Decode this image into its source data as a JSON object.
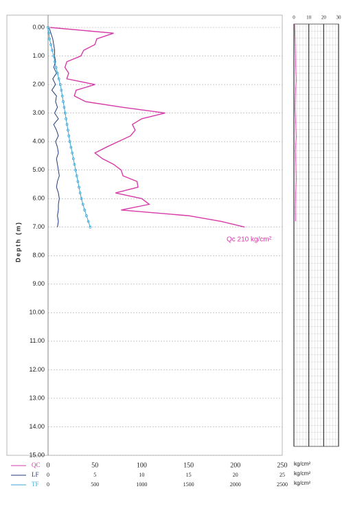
{
  "chart_data": [
    {
      "type": "line",
      "y_label": "Depth (m)",
      "ylim": [
        0,
        15
      ],
      "yticks": [
        {
          "value": 0,
          "label": "0.00"
        },
        {
          "value": 1,
          "label": "1.00"
        },
        {
          "value": 2,
          "label": "2.00"
        },
        {
          "value": 3,
          "label": "3.00"
        },
        {
          "value": 4,
          "label": "4.00"
        },
        {
          "value": 5,
          "label": "5.00"
        },
        {
          "value": 6,
          "label": "6.00"
        },
        {
          "value": 7,
          "label": "7.00"
        },
        {
          "value": 8,
          "label": "8.00"
        },
        {
          "value": 9,
          "label": "9.00"
        },
        {
          "value": 10,
          "label": "10.00"
        },
        {
          "value": 11,
          "label": "11.00"
        },
        {
          "value": 12,
          "label": "12.00"
        },
        {
          "value": 13,
          "label": "13.00"
        },
        {
          "value": 14,
          "label": "14.00"
        },
        {
          "value": 15,
          "label": "15.00"
        }
      ],
      "grid": true,
      "depth": [
        0,
        0.2,
        0.4,
        0.6,
        0.8,
        1.0,
        1.2,
        1.4,
        1.6,
        1.8,
        2.0,
        2.2,
        2.4,
        2.6,
        2.8,
        3.0,
        3.2,
        3.4,
        3.6,
        3.8,
        4.0,
        4.2,
        4.4,
        4.6,
        4.8,
        5.0,
        5.2,
        5.4,
        5.6,
        5.8,
        6.0,
        6.2,
        6.4,
        6.6,
        6.8,
        7.0
      ],
      "annotation": "Qc 210 kg/cm²",
      "series": [
        {
          "name": "QC",
          "color": "#d63aa8",
          "unit": "kg/cm²",
          "markers": false,
          "xlim": [
            0,
            250
          ],
          "xticks": [
            0,
            50,
            100,
            150,
            200,
            250
          ],
          "values": [
            2,
            70,
            52,
            50,
            38,
            35,
            20,
            18,
            22,
            20,
            50,
            30,
            28,
            40,
            80,
            125,
            100,
            90,
            93,
            88,
            75,
            62,
            50,
            58,
            70,
            78,
            80,
            95,
            96,
            72,
            100,
            108,
            78,
            150,
            185,
            210
          ]
        },
        {
          "name": "LF",
          "color": "#1f3a78",
          "unit": "kg/cm²",
          "markers": false,
          "xlim": [
            0,
            25
          ],
          "xticks": [
            0,
            5,
            10,
            15,
            20,
            25
          ],
          "values": [
            0.1,
            0.3,
            0.5,
            0.6,
            0.7,
            0.7,
            0.8,
            0.6,
            0.9,
            0.5,
            0.8,
            0.4,
            0.9,
            0.8,
            1.0,
            0.7,
            1.1,
            0.6,
            0.9,
            1.1,
            0.8,
            1.0,
            1.1,
            0.9,
            1.0,
            1.1,
            1.2,
            1.0,
            0.9,
            1.1,
            1.2,
            1.1,
            1.1,
            1.0,
            1.1,
            1.0
          ]
        },
        {
          "name": "TF",
          "color": "#3aa6d6",
          "unit": "kg/cm²",
          "markers": true,
          "xlim": [
            0,
            2500
          ],
          "xticks": [
            0,
            500,
            1000,
            1500,
            2000,
            2500
          ],
          "values": [
            0,
            8,
            15,
            30,
            45,
            60,
            72,
            85,
            100,
            115,
            130,
            142,
            152,
            162,
            172,
            182,
            192,
            202,
            212,
            222,
            232,
            245,
            258,
            270,
            282,
            294,
            306,
            318,
            330,
            342,
            356,
            372,
            390,
            410,
            430,
            450
          ]
        }
      ]
    },
    {
      "type": "line",
      "ylim": [
        0,
        15
      ],
      "xlim": [
        0,
        30
      ],
      "xticks": [
        0,
        10,
        20,
        30
      ],
      "depth": [
        0,
        0.5,
        1.0,
        1.5,
        2.0,
        2.5,
        3.0,
        3.5,
        4.0,
        4.5,
        5.0,
        5.5,
        6.0,
        6.5,
        7.0
      ],
      "series": [
        {
          "color": "#d63aa8",
          "values": [
            0.5,
            0.8,
            1.0,
            1.2,
            1.5,
            1.0,
            0.8,
            1.2,
            1.5,
            1.0,
            1.3,
            1.5,
            1.2,
            1.0,
            1.1
          ]
        }
      ]
    }
  ]
}
